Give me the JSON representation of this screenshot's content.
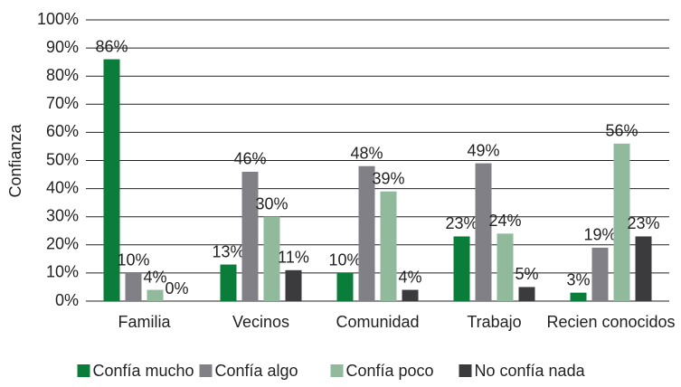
{
  "chart_data": {
    "type": "bar",
    "y_label": "Confianza",
    "categories": [
      "Familia",
      "Vecinos",
      "Comunidad",
      "Trabajo",
      "Recien conocidos"
    ],
    "series": [
      {
        "name": "Confía mucho",
        "color": "#0b7d3b",
        "values": [
          86,
          13,
          10,
          23,
          3
        ],
        "value_labels": [
          "86%",
          "13%",
          "10%",
          "23%",
          "3%"
        ]
      },
      {
        "name": "Confía algo",
        "color": "#808086",
        "values": [
          10,
          46,
          48,
          49,
          19
        ],
        "value_labels": [
          "10%",
          "46%",
          "48%",
          "49%",
          "19%"
        ]
      },
      {
        "name": "Confía poco",
        "color": "#91b99c",
        "values": [
          4,
          30,
          39,
          24,
          56
        ],
        "value_labels": [
          "4%",
          "30%",
          "39%",
          "24%",
          "56%"
        ]
      },
      {
        "name": "No confía nada",
        "color": "#3b3b3d",
        "values": [
          0,
          11,
          4,
          5,
          23
        ],
        "value_labels": [
          "0%",
          "11%",
          "4%",
          "5%",
          "23%"
        ]
      }
    ],
    "ylim": [
      0,
      100
    ],
    "yticks": [
      {
        "value": 0,
        "label": "0%"
      },
      {
        "value": 10,
        "label": "10%"
      },
      {
        "value": 20,
        "label": "20%"
      },
      {
        "value": 30,
        "label": "30%"
      },
      {
        "value": 40,
        "label": "40%"
      },
      {
        "value": 50,
        "label": "50%"
      },
      {
        "value": 60,
        "label": "60%"
      },
      {
        "value": 70,
        "label": "70%"
      },
      {
        "value": 80,
        "label": "80%"
      },
      {
        "value": 90,
        "label": "90%"
      },
      {
        "value": 100,
        "label": "100%"
      }
    ],
    "grid": true,
    "legend": "bottom"
  }
}
